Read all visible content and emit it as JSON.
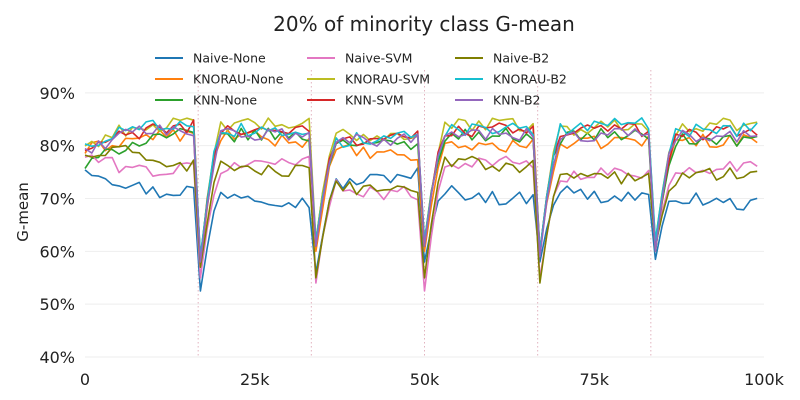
{
  "chart_data": {
    "type": "line",
    "title": "20% of minority class G-mean",
    "xlabel": "",
    "ylabel": "G-mean",
    "xlim": [
      0,
      100000
    ],
    "ylim": [
      40,
      100
    ],
    "x_ticks": [
      0,
      25000,
      50000,
      75000,
      100000
    ],
    "x_tick_labels": [
      "0",
      "25k",
      "50k",
      "75k",
      "100k"
    ],
    "y_ticks": [
      40,
      50,
      60,
      70,
      80,
      90
    ],
    "y_tick_labels": [
      "40%",
      "50%",
      "60%",
      "70%",
      "80%",
      "90%"
    ],
    "grid": "horizontal",
    "legend_position": "top-center",
    "drift_points": [
      16667,
      33333,
      50000,
      66667,
      83333
    ],
    "x_step": 1000,
    "series": [
      {
        "name": "Naive-None",
        "color": "#1f77b4",
        "levels": [
          [
            76,
            73,
            71,
            72
          ],
          [
            71,
            71,
            70,
            69
          ],
          [
            72,
            73,
            74,
            75
          ],
          [
            72,
            71,
            70,
            70
          ],
          [
            73,
            71,
            70,
            71
          ],
          [
            72,
            70,
            69,
            69
          ],
          [
            71,
            70,
            69,
            70
          ]
        ],
        "dips": [
          52.5,
          56,
          58,
          58,
          58.5,
          62
        ]
      },
      {
        "name": "KNORAU-None",
        "color": "#ff7f0e",
        "levels": [
          [
            79,
            81,
            82,
            82
          ],
          [
            82,
            82,
            81,
            81
          ],
          [
            79,
            79,
            78,
            78
          ],
          [
            80,
            80,
            80,
            80
          ],
          [
            80,
            80,
            81,
            81
          ],
          [
            81,
            81,
            81,
            81
          ],
          [
            80,
            80,
            80,
            80
          ]
        ],
        "dips": [
          57,
          60,
          60,
          60,
          60,
          63
        ]
      },
      {
        "name": "KNN-None",
        "color": "#2ca02c",
        "levels": [
          [
            76,
            80,
            82,
            82
          ],
          [
            82,
            82,
            82,
            82
          ],
          [
            81,
            81,
            80,
            80
          ],
          [
            82,
            82,
            82,
            82
          ],
          [
            81,
            82,
            82,
            82
          ],
          [
            81,
            81,
            81,
            81
          ],
          [
            82,
            82,
            82,
            82
          ]
        ],
        "dips": [
          59,
          62,
          62,
          60,
          60,
          63
        ]
      },
      {
        "name": "Naive-SVM",
        "color": "#e377c2",
        "levels": [
          [
            78,
            76,
            75,
            76
          ],
          [
            75,
            76,
            77,
            78
          ],
          [
            73,
            72,
            71,
            71
          ],
          [
            75,
            77,
            77,
            76
          ],
          [
            73,
            74,
            75,
            75
          ],
          [
            74,
            75,
            76,
            77
          ],
          [
            75,
            76,
            76,
            76
          ]
        ],
        "dips": [
          55,
          54,
          52.5,
          55,
          61,
          61.5
        ]
      },
      {
        "name": "KNORAU-SVM",
        "color": "#bcbd22",
        "levels": [
          [
            80,
            83,
            84,
            84
          ],
          [
            84,
            84,
            84,
            84
          ],
          [
            82,
            82,
            82,
            82
          ],
          [
            83,
            84,
            84,
            84
          ],
          [
            83,
            83,
            84,
            84
          ],
          [
            83,
            83,
            84,
            84
          ],
          [
            83,
            83,
            84,
            84
          ]
        ],
        "dips": [
          58,
          62,
          62,
          60,
          62,
          64
        ]
      },
      {
        "name": "KNN-SVM",
        "color": "#d62728",
        "levels": [
          [
            79,
            82,
            83,
            84
          ],
          [
            83,
            83,
            83,
            83
          ],
          [
            81,
            81,
            82,
            82
          ],
          [
            82,
            83,
            83,
            83
          ],
          [
            82,
            83,
            83,
            83
          ],
          [
            82,
            82,
            83,
            83
          ],
          [
            82,
            82,
            83,
            83
          ]
        ],
        "dips": [
          58,
          61,
          61,
          60,
          61,
          63
        ]
      },
      {
        "name": "Naive-B2",
        "color": "#7f7f00",
        "levels": [
          [
            78,
            79,
            77,
            76
          ],
          [
            77,
            76,
            75,
            75
          ],
          [
            72,
            72,
            72,
            72
          ],
          [
            78,
            77,
            76,
            76
          ],
          [
            75,
            74,
            74,
            74
          ],
          [
            73,
            74,
            75,
            75
          ],
          [
            75,
            75,
            76,
            76
          ]
        ],
        "dips": [
          57,
          55,
          55,
          54,
          61,
          63
        ]
      },
      {
        "name": "KNORAU-B2",
        "color": "#17becf",
        "levels": [
          [
            80,
            83,
            84,
            85
          ],
          [
            83,
            83,
            83,
            83
          ],
          [
            81,
            81,
            82,
            82
          ],
          [
            83,
            83,
            83,
            83
          ],
          [
            83,
            83,
            84,
            84
          ],
          [
            83,
            83,
            83,
            83
          ],
          [
            83,
            83,
            84,
            84
          ]
        ],
        "dips": [
          59,
          62,
          62,
          60,
          62,
          64
        ]
      },
      {
        "name": "KNN-B2",
        "color": "#9467bd",
        "levels": [
          [
            79,
            82,
            83,
            83
          ],
          [
            82,
            82,
            82,
            82
          ],
          [
            81,
            81,
            81,
            81
          ],
          [
            82,
            82,
            82,
            82
          ],
          [
            81,
            82,
            82,
            82
          ],
          [
            82,
            82,
            82,
            82
          ],
          [
            82,
            82,
            83,
            83
          ]
        ],
        "dips": [
          58,
          61,
          61,
          59,
          60,
          63
        ]
      }
    ]
  }
}
